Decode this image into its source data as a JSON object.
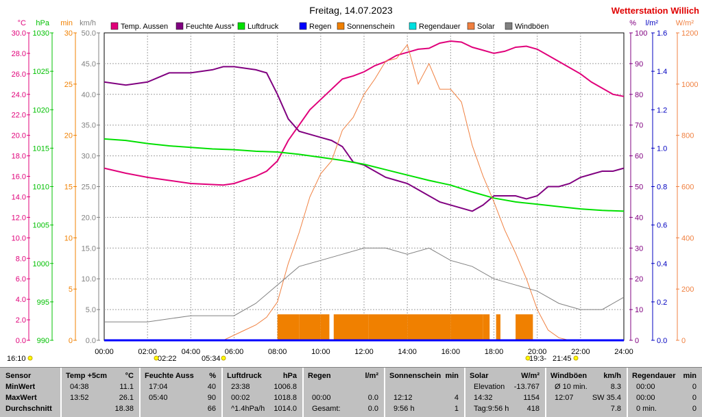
{
  "header": {
    "title": "Freitag, 14.07.2023",
    "brand": "Wetterstation Willich",
    "brand_color": "#e00000"
  },
  "axes": {
    "left": [
      {
        "unit": "°C",
        "color": "#e0007a",
        "ticks": [
          "30.0",
          "28.0",
          "26.0",
          "24.0",
          "22.0",
          "20.0",
          "18.0",
          "16.0",
          "14.0",
          "12.0",
          "10.0",
          "8.0",
          "6.0",
          "4.0",
          "2.0",
          "0.0"
        ]
      },
      {
        "unit": "hPa",
        "color": "#00c000",
        "ticks": [
          "1030",
          "1025",
          "1020",
          "1015",
          "1010",
          "1005",
          "1000",
          "995",
          "990"
        ]
      },
      {
        "unit": "min",
        "color": "#f08000",
        "ticks": [
          "30",
          "25",
          "20",
          "15",
          "10",
          "5",
          "0"
        ]
      },
      {
        "unit": "km/h",
        "color": "#808080",
        "ticks": [
          "50.0",
          "45.0",
          "40.0",
          "35.0",
          "30.0",
          "25.0",
          "20.0",
          "15.0",
          "10.0",
          "5.0",
          "0.0"
        ]
      }
    ],
    "right": [
      {
        "unit": "%",
        "color": "#800080",
        "ticks": [
          "100",
          "90",
          "80",
          "70",
          "60",
          "50",
          "40",
          "30",
          "20",
          "10",
          "0"
        ]
      },
      {
        "unit": "l/m²",
        "color": "#0000c0",
        "ticks": [
          "1.6",
          "1.4",
          "1.2",
          "1.0",
          "0.8",
          "0.6",
          "0.4",
          "0.2",
          "0.0"
        ]
      },
      {
        "unit": "W/m²",
        "color": "#f08040",
        "ticks": [
          "1200",
          "1000",
          "800",
          "600",
          "400",
          "200",
          "0"
        ]
      }
    ],
    "x_ticks": [
      "00:00",
      "02:00",
      "04:00",
      "06:00",
      "08:00",
      "10:00",
      "12:00",
      "14:00",
      "16:00",
      "18:00",
      "20:00",
      "22:00",
      "24:00"
    ]
  },
  "markers": {
    "left_time": "16:10",
    "sunrise_a": "02:22",
    "sunrise_b": "05:34",
    "sunset_a": "19:3-",
    "sunset_b": "21:45"
  },
  "chart_data": {
    "type": "line",
    "xlim": [
      0,
      24
    ],
    "legend": [
      {
        "name": "Temp. Aussen",
        "color": "#e0007a"
      },
      {
        "name": "Feuchte Auss*",
        "color": "#800080"
      },
      {
        "name": "Luftdruck",
        "color": "#00e000"
      },
      {
        "name": "Regen",
        "color": "#0000ff"
      },
      {
        "name": "Sonnenschein",
        "color": "#f08000"
      },
      {
        "name": "Regendauer",
        "color": "#00e0e0"
      },
      {
        "name": "Solar",
        "color": "#f08040"
      },
      {
        "name": "Windböen",
        "color": "#808080"
      }
    ],
    "series": [
      {
        "name": "Temp. Aussen",
        "unit": "°C",
        "ylim": [
          0,
          30
        ],
        "x": [
          0,
          1,
          2,
          3,
          4,
          5,
          5.5,
          6,
          7,
          7.5,
          8,
          8.5,
          9,
          9.5,
          10,
          10.5,
          11,
          11.5,
          12,
          12.5,
          13,
          13.5,
          14,
          14.5,
          15,
          15.5,
          16,
          16.5,
          17,
          17.5,
          18,
          18.5,
          19,
          19.5,
          20,
          20.5,
          21,
          21.5,
          22,
          22.5,
          23,
          23.5,
          24
        ],
        "y": [
          16.8,
          16.3,
          15.9,
          15.6,
          15.3,
          15.2,
          15.15,
          15.3,
          16.0,
          16.5,
          17.5,
          19.5,
          21.0,
          22.5,
          23.5,
          24.5,
          25.5,
          25.8,
          26.2,
          26.8,
          27.2,
          27.8,
          28.1,
          28.4,
          28.5,
          29.0,
          29.2,
          29.1,
          28.6,
          28.3,
          28.0,
          28.2,
          28.6,
          28.7,
          28.4,
          27.8,
          27.2,
          26.6,
          26.0,
          25.2,
          24.6,
          24.0,
          23.8
        ]
      },
      {
        "name": "Feuchte Auss*",
        "unit": "%",
        "ylim": [
          0,
          100
        ],
        "x": [
          0,
          1,
          2,
          3,
          4,
          5,
          5.5,
          6,
          7,
          7.5,
          8,
          8.5,
          9,
          9.5,
          10,
          10.5,
          11,
          11.5,
          12,
          12.5,
          13,
          13.5,
          14,
          14.5,
          15,
          15.5,
          16,
          16.5,
          17,
          17.5,
          18,
          18.5,
          19,
          19.5,
          20,
          20.5,
          21,
          21.5,
          22,
          22.5,
          23,
          23.5,
          24
        ],
        "y": [
          84,
          83,
          84,
          87,
          87,
          88,
          89,
          89,
          88,
          87,
          80,
          72,
          68,
          67,
          66,
          65,
          63,
          58,
          57,
          55,
          53,
          52,
          51,
          49,
          47,
          45,
          44,
          43,
          42,
          44,
          47,
          47,
          47,
          46,
          47,
          50,
          50,
          51,
          53,
          54,
          55,
          55,
          56
        ]
      },
      {
        "name": "Luftdruck",
        "unit": "hPa",
        "ylim": [
          990,
          1030
        ],
        "x": [
          0,
          1,
          2,
          3,
          4,
          5,
          6,
          7,
          8,
          9,
          10,
          11,
          12,
          13,
          14,
          15,
          16,
          17,
          18,
          19,
          20,
          21,
          22,
          23,
          24
        ],
        "y": [
          1016.2,
          1016.0,
          1015.6,
          1015.3,
          1015.1,
          1014.9,
          1014.8,
          1014.6,
          1014.5,
          1014.2,
          1013.8,
          1013.4,
          1012.9,
          1012.2,
          1011.5,
          1010.8,
          1010.2,
          1009.3,
          1008.5,
          1008.0,
          1007.7,
          1007.4,
          1007.1,
          1006.9,
          1006.8
        ]
      },
      {
        "name": "Solar",
        "unit": "W/m²",
        "ylim": [
          0,
          1200
        ],
        "x": [
          0,
          5.5,
          6,
          6.5,
          7,
          7.5,
          8,
          8.5,
          9,
          9.5,
          10,
          10.5,
          11,
          11.5,
          12,
          12.5,
          13,
          13.5,
          14,
          14.5,
          15,
          15.5,
          16,
          16.5,
          17,
          17.5,
          18,
          18.5,
          19,
          19.5,
          20,
          20.5,
          21,
          21.5,
          24
        ],
        "y": [
          0,
          0,
          20,
          40,
          60,
          90,
          150,
          300,
          420,
          560,
          650,
          700,
          820,
          870,
          960,
          1020,
          1090,
          1100,
          1154,
          1000,
          1080,
          980,
          980,
          930,
          760,
          640,
          540,
          430,
          340,
          240,
          120,
          40,
          10,
          0,
          0
        ]
      },
      {
        "name": "Windböen",
        "unit": "km/h",
        "ylim": [
          0,
          50
        ],
        "x": [
          0,
          2,
          4,
          6,
          7,
          8,
          9,
          10,
          11,
          12,
          13,
          14,
          15,
          16,
          17,
          18,
          19,
          20,
          21,
          22,
          23,
          24
        ],
        "y": [
          3,
          3,
          4,
          4,
          6,
          9,
          12,
          13,
          14,
          15,
          15,
          14,
          15,
          13,
          12,
          10,
          9,
          8,
          6,
          5,
          5,
          7
        ]
      },
      {
        "name": "Sonnenschein",
        "unit": "min",
        "ylim": [
          0,
          30
        ],
        "x": [
          8,
          9,
          10,
          10.4,
          10.6,
          12,
          12.2,
          14,
          16,
          17.5,
          17.8,
          18.1,
          18.3,
          19,
          19.8,
          24
        ],
        "y": [
          2,
          2,
          2,
          0,
          2,
          2,
          2,
          2,
          2,
          2,
          0,
          2,
          0,
          2,
          0,
          0
        ]
      },
      {
        "name": "Regen",
        "unit": "l/m²",
        "ylim": [
          0,
          1.6
        ],
        "x": [
          0,
          24
        ],
        "y": [
          0,
          0
        ]
      }
    ]
  },
  "table": {
    "columns": [
      {
        "title": "Sensor",
        "unit": "",
        "rows": [
          [
            "MinWert",
            ""
          ],
          [
            "MaxWert",
            ""
          ],
          [
            "Durchschnitt",
            ""
          ]
        ]
      },
      {
        "title": "Temp +5cm",
        "unit": "°C",
        "rows": [
          [
            "04:38",
            "11.1"
          ],
          [
            "13:52",
            "26.1"
          ],
          [
            "",
            "18.38"
          ]
        ]
      },
      {
        "title": "Feuchte Auss",
        "unit": "%",
        "rows": [
          [
            "17:04",
            "40"
          ],
          [
            "05:40",
            "90"
          ],
          [
            "",
            "66"
          ]
        ]
      },
      {
        "title": "Luftdruck",
        "unit": "hPa",
        "rows": [
          [
            "23:38",
            "1006.8"
          ],
          [
            "00:02",
            "1018.8"
          ],
          [
            "^1.4hPa/h",
            "1014.0"
          ]
        ]
      },
      {
        "title": "Regen",
        "unit": "l/m²",
        "rows": [
          [
            "",
            ""
          ],
          [
            "00:00",
            "0.0"
          ],
          [
            "Gesamt:",
            "0.0"
          ]
        ]
      },
      {
        "title": "Sonnenschein",
        "unit": "min",
        "rows": [
          [
            "",
            ""
          ],
          [
            "12:12",
            "4"
          ],
          [
            "9:56 h",
            "1"
          ]
        ]
      },
      {
        "title": "Solar",
        "unit": "W/m²",
        "rows": [
          [
            "Elevation",
            "-13.767"
          ],
          [
            "14:32",
            "1154"
          ],
          [
            "Tag:9:56 h",
            "418"
          ]
        ]
      },
      {
        "title": "Windböen",
        "unit": "km/h",
        "rows": [
          [
            "Ø 10 min.",
            "8.3"
          ],
          [
            "12:07",
            "SW 35.4"
          ],
          [
            "",
            "7.8"
          ]
        ]
      },
      {
        "title": "Regendauer",
        "unit": "min",
        "rows": [
          [
            "00:00",
            "0"
          ],
          [
            "00:00",
            "0"
          ],
          [
            "0 min.",
            "0"
          ]
        ]
      }
    ]
  }
}
